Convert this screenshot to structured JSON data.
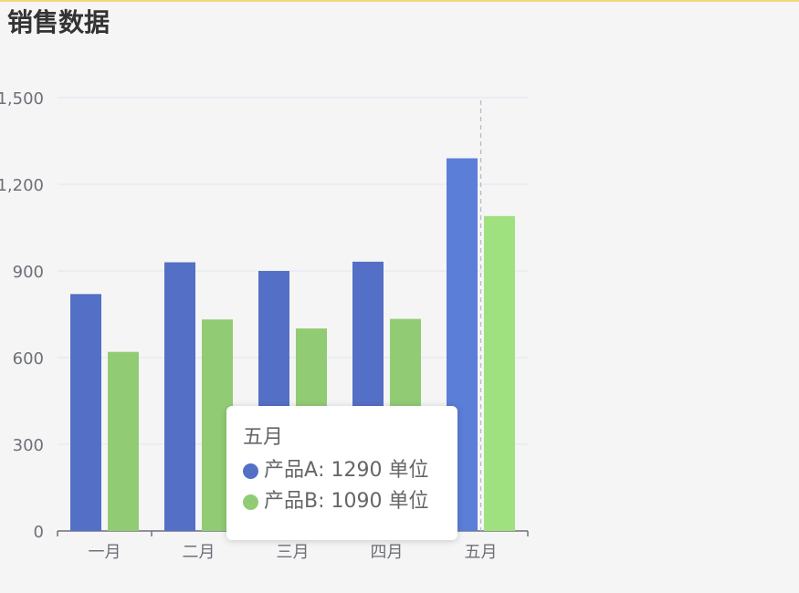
{
  "title": "销售数据",
  "chart_data": {
    "type": "bar",
    "categories": [
      "一月",
      "二月",
      "三月",
      "四月",
      "五月"
    ],
    "series": [
      {
        "name": "产品A",
        "values": [
          820,
          930,
          900,
          932,
          1290
        ],
        "color": "#5470c6"
      },
      {
        "name": "产品B",
        "values": [
          620,
          732,
          701,
          734,
          1090
        ],
        "color": "#91cc75"
      }
    ],
    "y_ticks": [
      "0",
      "300",
      "600",
      "900",
      "1,200",
      "1,500"
    ],
    "ylim": [
      0,
      1500
    ],
    "grid": true,
    "highlighted_category": "五月",
    "unit": "单位"
  },
  "tooltip": {
    "title": "五月",
    "rows": [
      {
        "name": "产品A",
        "value_text": ": 1290 单位",
        "color": "#5470c6"
      },
      {
        "name": "产品B",
        "value_text": ": 1090 单位",
        "color": "#91cc75"
      }
    ]
  }
}
